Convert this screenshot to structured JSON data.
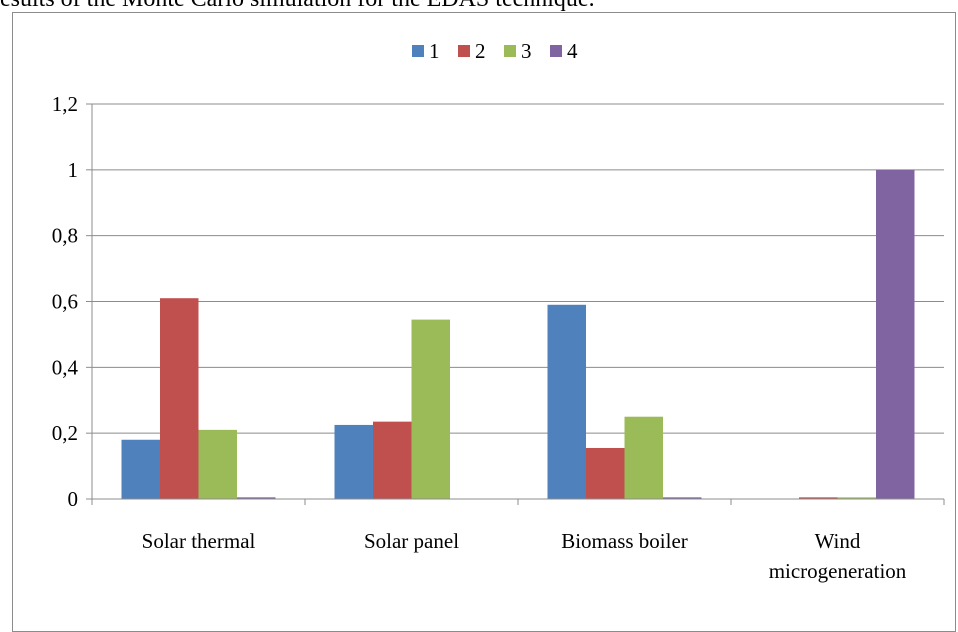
{
  "caption": "esults of the Monte Carlo simulation for the EDAS technique.",
  "chart_data": {
    "type": "bar",
    "categories": [
      "Solar thermal",
      "Solar panel",
      "Biomass boiler",
      [
        "Wind",
        "microgeneration"
      ]
    ],
    "series": [
      {
        "name": "1",
        "color": "#4f81bd",
        "values": [
          0.18,
          0.225,
          0.59,
          0.0
        ]
      },
      {
        "name": "2",
        "color": "#c0504d",
        "values": [
          0.61,
          0.235,
          0.155,
          0.005
        ]
      },
      {
        "name": "3",
        "color": "#9bbb59",
        "values": [
          0.21,
          0.545,
          0.25,
          0.005
        ]
      },
      {
        "name": "4",
        "color": "#8064a2",
        "values": [
          0.005,
          0.0,
          0.005,
          1.0
        ]
      }
    ],
    "yticks": [
      "0",
      "0,2",
      "0,4",
      "0,6",
      "0,8",
      "1",
      "1,2"
    ],
    "ylim": [
      0,
      1.2
    ],
    "grid": true,
    "legend_position": "top-center"
  }
}
